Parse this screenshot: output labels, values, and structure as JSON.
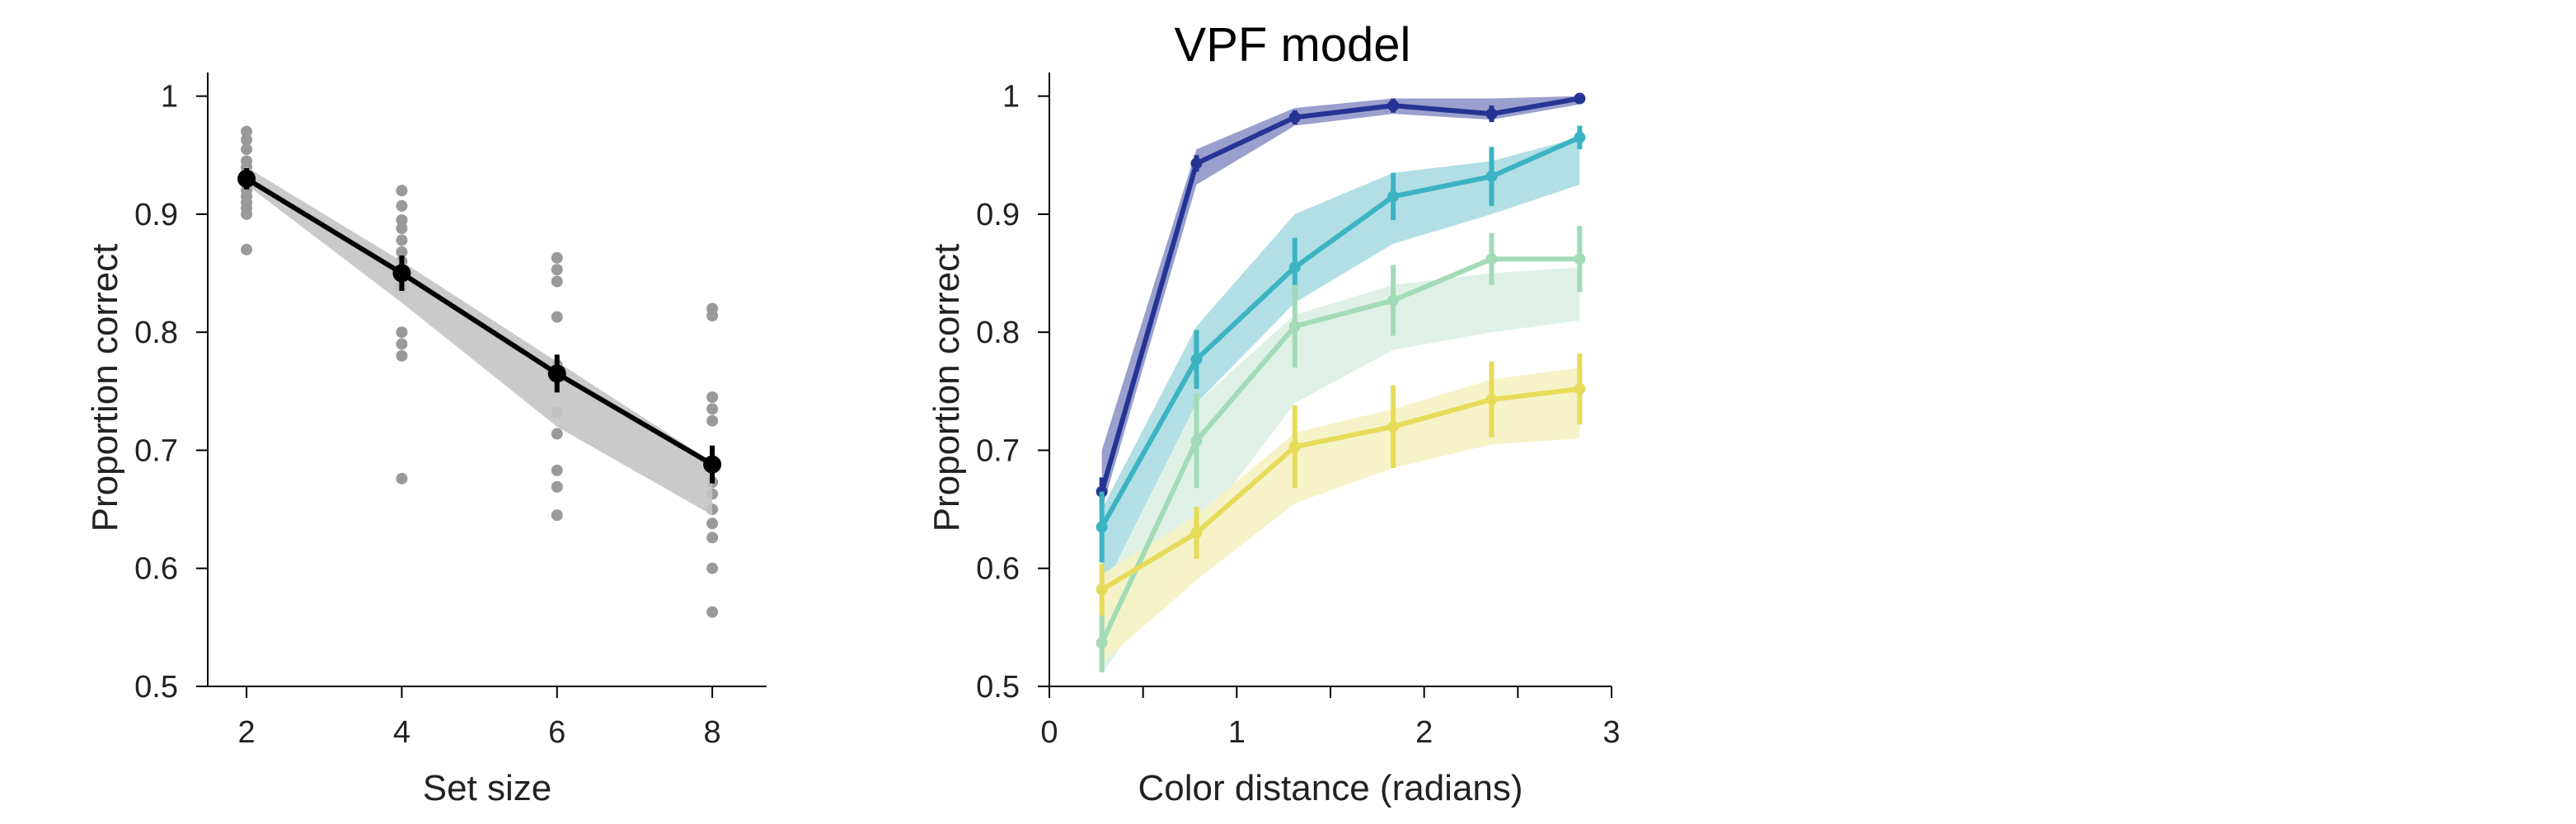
{
  "chart_data": [
    {
      "type": "line",
      "title": "",
      "xlabel": "Set size",
      "ylabel": "Proportion correct",
      "xlim": [
        1.5,
        8.7
      ],
      "ylim": [
        0.5,
        1.02
      ],
      "xticks": [
        2,
        4,
        6,
        8
      ],
      "xtick_labels": [
        "2",
        "4",
        "6",
        "8"
      ],
      "yticks": [
        0.5,
        0.6,
        0.7,
        0.8,
        0.9,
        1.0
      ],
      "ytick_labels": [
        "0.5",
        "0.6",
        "0.7",
        "0.8",
        "0.9",
        "1"
      ],
      "grid": false,
      "series": [
        {
          "color": "#000000",
          "x": [
            2,
            4,
            6,
            8
          ],
          "y": [
            0.93,
            0.85,
            0.765,
            0.688
          ],
          "err": [
            0.009,
            0.015,
            0.016,
            0.016
          ],
          "band_lower": [
            0.925,
            0.825,
            0.72,
            0.645
          ],
          "band_upper": [
            0.94,
            0.86,
            0.775,
            0.69
          ],
          "band_color": "#c4c4c4"
        }
      ],
      "individual_points": {
        "color": "#9a9a9a",
        "x": [
          2,
          2,
          2,
          2,
          2,
          2,
          2,
          2,
          2,
          2,
          2,
          2,
          2,
          4,
          4,
          4,
          4,
          4,
          4,
          4,
          4,
          4,
          4,
          4,
          4,
          4,
          4,
          6,
          6,
          6,
          6,
          6,
          6,
          6,
          6,
          6,
          6,
          8,
          8,
          8,
          8,
          8,
          8,
          8,
          8,
          8,
          8,
          8,
          8,
          8
        ],
        "y": [
          0.97,
          0.963,
          0.955,
          0.945,
          0.94,
          0.935,
          0.928,
          0.92,
          0.915,
          0.91,
          0.905,
          0.9,
          0.87,
          0.92,
          0.907,
          0.895,
          0.888,
          0.878,
          0.868,
          0.86,
          0.852,
          0.845,
          0.838,
          0.8,
          0.79,
          0.78,
          0.676,
          0.863,
          0.853,
          0.843,
          0.813,
          0.772,
          0.732,
          0.714,
          0.683,
          0.669,
          0.645,
          0.82,
          0.814,
          0.745,
          0.735,
          0.725,
          0.69,
          0.673,
          0.663,
          0.65,
          0.638,
          0.626,
          0.6,
          0.563
        ]
      }
    },
    {
      "type": "line",
      "title": "VPF model",
      "xlabel": "Color distance (radians)",
      "ylabel": "Proportion correct",
      "xlim": [
        0,
        3
      ],
      "ylim": [
        0.5,
        1.02
      ],
      "xticks": [
        0,
        0.5,
        1,
        1.5,
        2,
        2.5,
        3
      ],
      "xtick_labels": [
        "0",
        "",
        "1",
        "",
        "2",
        "",
        "3"
      ],
      "yticks": [
        0.5,
        0.6,
        0.7,
        0.8,
        0.9,
        1.0
      ],
      "ytick_labels": [
        "0.5",
        "0.6",
        "0.7",
        "0.8",
        "0.9",
        "1"
      ],
      "grid": false,
      "x": [
        0.28,
        0.785,
        1.31,
        1.835,
        2.36,
        2.83
      ],
      "series": [
        {
          "color": "#253494",
          "band_color": "#8f96c8",
          "y": [
            0.665,
            0.943,
            0.982,
            0.992,
            0.985,
            0.998
          ],
          "err": [
            0.012,
            0.007,
            0.006,
            0.006,
            0.007,
            0.003
          ],
          "band_lower": [
            0.65,
            0.925,
            0.975,
            0.985,
            0.98,
            0.993
          ],
          "band_upper": [
            0.7,
            0.955,
            0.99,
            0.998,
            0.998,
            1.0
          ]
        },
        {
          "color": "#3cb3c3",
          "band_color": "#a8dbe2",
          "y": [
            0.635,
            0.777,
            0.855,
            0.915,
            0.932,
            0.965
          ],
          "err": [
            0.03,
            0.025,
            0.025,
            0.02,
            0.025,
            0.01
          ],
          "band_lower": [
            0.58,
            0.74,
            0.825,
            0.875,
            0.9,
            0.925
          ],
          "band_upper": [
            0.65,
            0.805,
            0.9,
            0.935,
            0.945,
            0.965
          ]
        },
        {
          "color": "#a2dbb6",
          "band_color": "#dbf0e3",
          "y": [
            0.537,
            0.708,
            0.805,
            0.827,
            0.862,
            0.862
          ],
          "err": [
            0.025,
            0.04,
            0.035,
            0.03,
            0.022,
            0.028
          ],
          "band_lower": [
            0.51,
            0.63,
            0.74,
            0.785,
            0.8,
            0.81
          ],
          "band_upper": [
            0.58,
            0.74,
            0.815,
            0.84,
            0.85,
            0.855
          ]
        },
        {
          "color": "#e7db5a",
          "band_color": "#f6f2c3",
          "y": [
            0.582,
            0.63,
            0.703,
            0.72,
            0.743,
            0.752
          ],
          "err": [
            0.022,
            0.022,
            0.035,
            0.035,
            0.032,
            0.03
          ],
          "band_lower": [
            0.52,
            0.59,
            0.655,
            0.685,
            0.705,
            0.71
          ],
          "band_upper": [
            0.595,
            0.645,
            0.715,
            0.735,
            0.76,
            0.77
          ]
        }
      ]
    }
  ]
}
